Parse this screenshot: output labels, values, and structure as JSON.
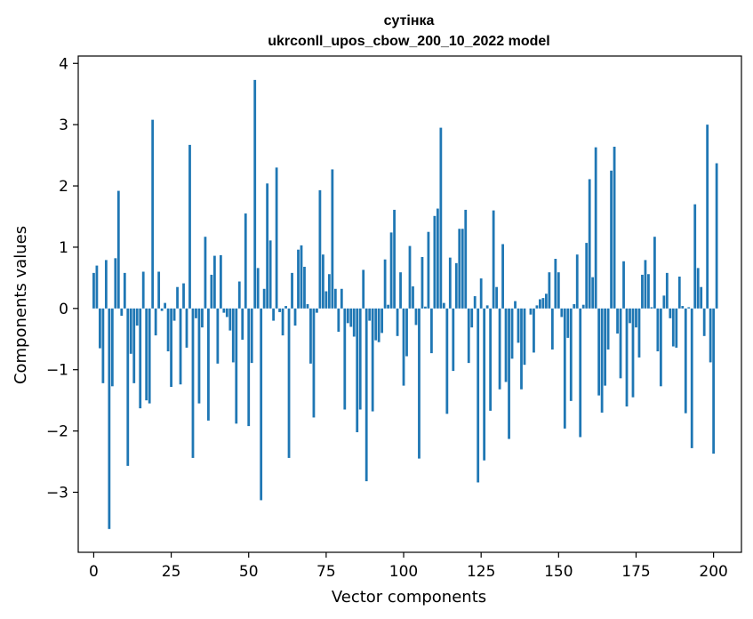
{
  "chart_data": {
    "type": "bar",
    "title": "сутінка",
    "subtitle": "ukrconll_upos_cbow_200_10_2022 model",
    "xlabel": "Vector components",
    "ylabel": "Components values",
    "xlim": [
      -5,
      209
    ],
    "ylim": [
      -3.98,
      4.12
    ],
    "x_ticks": [
      0,
      25,
      50,
      75,
      100,
      125,
      150,
      175,
      200
    ],
    "y_ticks": [
      -3,
      -2,
      -1,
      0,
      1,
      2,
      3,
      4
    ],
    "bar_color": "#1f77b4",
    "grid": false,
    "legend": "none",
    "values": [
      0.58,
      0.7,
      -0.65,
      -1.22,
      0.79,
      -3.6,
      -1.27,
      0.82,
      1.92,
      -0.12,
      0.58,
      -2.57,
      -0.74,
      -1.22,
      -0.28,
      -1.63,
      0.6,
      -1.5,
      -1.55,
      3.08,
      -0.44,
      0.6,
      -0.04,
      0.09,
      -0.7,
      -1.28,
      -0.2,
      0.35,
      -1.24,
      0.41,
      -0.64,
      2.67,
      -2.44,
      -0.16,
      -1.55,
      -0.31,
      1.17,
      -1.83,
      0.55,
      0.86,
      -0.9,
      0.87,
      -0.07,
      -0.14,
      -0.36,
      -0.88,
      -1.88,
      0.44,
      -0.51,
      1.55,
      -1.92,
      -0.89,
      3.73,
      0.66,
      -3.13,
      0.32,
      2.04,
      1.11,
      -0.2,
      2.3,
      -0.06,
      -0.44,
      0.04,
      -2.44,
      0.58,
      -0.28,
      0.96,
      1.03,
      0.68,
      0.07,
      -0.9,
      -1.78,
      -0.07,
      1.93,
      0.88,
      0.28,
      0.56,
      2.27,
      0.32,
      -0.38,
      0.32,
      -1.65,
      -0.24,
      -0.3,
      -0.46,
      -2.02,
      -1.65,
      0.63,
      -2.82,
      -0.2,
      -1.68,
      -0.52,
      -0.55,
      -0.4,
      0.8,
      0.06,
      1.24,
      1.61,
      -0.45,
      0.59,
      -1.26,
      -0.78,
      1.02,
      0.36,
      -0.27,
      -2.45,
      0.84,
      0.03,
      1.25,
      -0.73,
      1.51,
      1.63,
      2.95,
      0.09,
      -1.72,
      0.83,
      -1.02,
      0.74,
      1.3,
      1.3,
      1.61,
      -0.89,
      -0.31,
      0.2,
      -2.84,
      0.49,
      -2.48,
      0.05,
      -1.67,
      1.6,
      0.35,
      -1.32,
      1.05,
      -1.2,
      -2.13,
      -0.82,
      0.12,
      -0.56,
      -1.32,
      -0.92,
      0.0,
      -0.1,
      -0.72,
      0.05,
      0.15,
      0.17,
      0.24,
      0.59,
      -0.67,
      0.81,
      0.59,
      -0.14,
      -1.96,
      -0.48,
      -1.51,
      0.07,
      0.88,
      -2.1,
      0.06,
      1.07,
      2.11,
      0.51,
      2.63,
      -1.42,
      -1.7,
      -1.26,
      -0.67,
      2.25,
      2.64,
      -0.41,
      -1.14,
      0.77,
      -1.6,
      -0.24,
      -1.45,
      -0.31,
      -0.8,
      0.55,
      0.79,
      0.56,
      0.02,
      1.17,
      -0.7,
      -1.27,
      0.21,
      0.58,
      -0.16,
      -0.62,
      -0.64,
      0.52,
      0.04,
      -1.71,
      0.02,
      -2.28,
      1.7,
      0.66,
      0.35,
      -0.45,
      3.0,
      -0.88,
      -2.37,
      2.37
    ]
  }
}
